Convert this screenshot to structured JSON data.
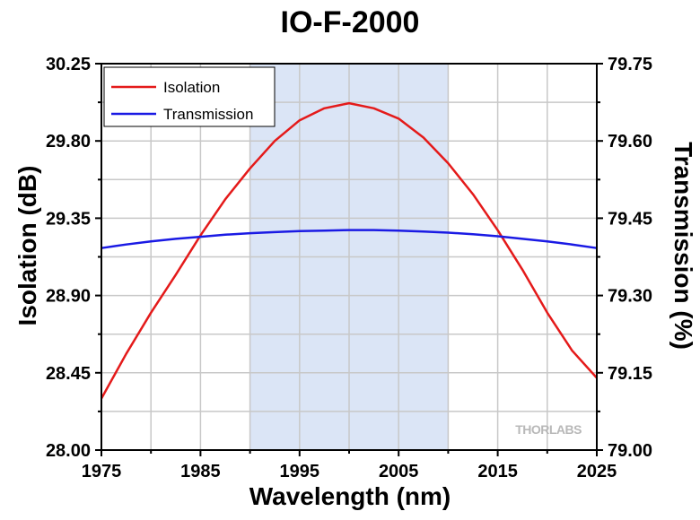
{
  "chart_data": {
    "type": "line",
    "title": "IO-F-2000",
    "xlabel": "Wavelength (nm)",
    "ylabel_left": "Isolation (dB)",
    "ylabel_right": "Transmission (%)",
    "xlim": [
      1975,
      2025
    ],
    "ylim_left": [
      28.0,
      30.25
    ],
    "ylim_right": [
      79.0,
      79.75
    ],
    "x_ticks": [
      "1975",
      "1985",
      "1995",
      "2005",
      "2015",
      "2025"
    ],
    "y_ticks_left": [
      "28.00",
      "28.45",
      "28.90",
      "29.35",
      "29.80",
      "30.25"
    ],
    "y_ticks_right": [
      "79.00",
      "79.15",
      "79.30",
      "79.45",
      "79.60",
      "79.75"
    ],
    "grid": true,
    "legend_position": "top-left",
    "highlight_band": {
      "x": [
        1990,
        2010
      ],
      "color": "#dbe5f6"
    },
    "watermark": "THORLABS",
    "series": [
      {
        "name": "Isolation",
        "axis": "left",
        "color": "#e41a1a",
        "x": [
          1975,
          1977.5,
          1980,
          1982.5,
          1985,
          1987.5,
          1990,
          1992.5,
          1995,
          1997.5,
          2000,
          2002.5,
          2005,
          2007.5,
          2010,
          2012.5,
          2015,
          2017.5,
          2020,
          2022.5,
          2025
        ],
        "y": [
          28.3,
          28.56,
          28.8,
          29.02,
          29.25,
          29.46,
          29.64,
          29.8,
          29.92,
          29.99,
          30.02,
          29.99,
          29.93,
          29.82,
          29.67,
          29.49,
          29.28,
          29.05,
          28.8,
          28.58,
          28.42
        ]
      },
      {
        "name": "Transmission",
        "axis": "right",
        "color": "#1a1ae4",
        "x": [
          1975,
          1977.5,
          1980,
          1982.5,
          1985,
          1987.5,
          1990,
          1992.5,
          1995,
          1997.5,
          2000,
          2002.5,
          2005,
          2007.5,
          2010,
          2012.5,
          2015,
          2017.5,
          2020,
          2022.5,
          2025
        ],
        "y": [
          79.392,
          79.399,
          79.405,
          79.41,
          79.414,
          79.418,
          79.421,
          79.423,
          79.425,
          79.426,
          79.427,
          79.427,
          79.426,
          79.424,
          79.422,
          79.419,
          79.415,
          79.41,
          79.405,
          79.399,
          79.392
        ]
      }
    ]
  }
}
